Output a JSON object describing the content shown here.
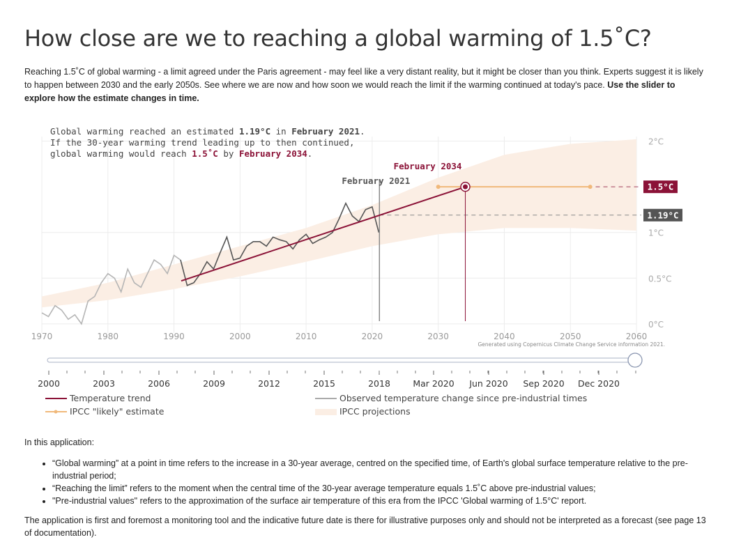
{
  "page": {
    "title": "How close are we to reaching a global warming of 1.5˚C?",
    "intro_text": "Reaching 1.5˚C of global warming - a limit agreed under the Paris agreement - may feel like a very distant reality, but it might be closer than you think. Experts suggest it is likely to happen between 2030 and the early 2050s. See where we are now and how soon we would reach the limit if the warming continued at today's pace. ",
    "intro_bold": "Use the slider to explore how the estimate changes in time."
  },
  "annotation": {
    "line1_a": "Global warming reached an estimated ",
    "line1_value": "1.19°C",
    "line1_b": " in ",
    "line1_date": "February 2021",
    "line1_c": ".",
    "line2": "If the 30-year warming trend leading up to then continued,",
    "line3_a": "global warming would reach ",
    "line3_value": "1.5˚C",
    "line3_b": " by ",
    "line3_date": "February 2034",
    "line3_c": "."
  },
  "chart_data": {
    "type": "line",
    "x_ticks": [
      1970,
      1980,
      1990,
      2000,
      2010,
      2020,
      2030,
      2040,
      2050,
      2060
    ],
    "xlim": [
      1970,
      2060
    ],
    "y_ticks": [
      {
        "value": 0,
        "label": "0°C"
      },
      {
        "value": 0.5,
        "label": "0.5°C"
      },
      {
        "value": 1,
        "label": "1°C"
      },
      {
        "value": 2,
        "label": "2°C"
      }
    ],
    "ylim": [
      -0.1,
      2.05
    ],
    "grid": true,
    "current_marker": {
      "x": 2021.1,
      "label": "February 2021",
      "value": 1.19,
      "badge": "1.19°C"
    },
    "target_marker": {
      "x": 2034.1,
      "label": "February 2034",
      "value": 1.5,
      "badge": "1.5°C"
    },
    "series": [
      {
        "name": "Temperature trend",
        "color": "#8b1237",
        "x": [
          1991.1,
          2034.1
        ],
        "y": [
          0.47,
          1.5
        ]
      },
      {
        "name": "IPCC \"likely\" estimate",
        "color": "#f0b87a",
        "x": [
          2030,
          2053
        ],
        "y": [
          1.5,
          1.5
        ]
      },
      {
        "name": "Observed temperature change since pre-industrial times",
        "color": "#555555",
        "x": [
          1970,
          1971,
          1972,
          1973,
          1974,
          1975,
          1976,
          1977,
          1978,
          1979,
          1980,
          1981,
          1982,
          1983,
          1984,
          1985,
          1986,
          1987,
          1988,
          1989,
          1990,
          1991,
          1992,
          1993,
          1994,
          1995,
          1996,
          1997,
          1998,
          1999,
          2000,
          2001,
          2002,
          2003,
          2004,
          2005,
          2006,
          2007,
          2008,
          2009,
          2010,
          2011,
          2012,
          2013,
          2014,
          2015,
          2016,
          2017,
          2018,
          2019,
          2020,
          2021
        ],
        "y": [
          0.12,
          0.08,
          0.2,
          0.15,
          0.05,
          0.1,
          0.0,
          0.25,
          0.3,
          0.45,
          0.55,
          0.5,
          0.35,
          0.6,
          0.45,
          0.4,
          0.55,
          0.7,
          0.65,
          0.55,
          0.75,
          0.7,
          0.42,
          0.45,
          0.55,
          0.68,
          0.6,
          0.78,
          0.95,
          0.7,
          0.72,
          0.85,
          0.9,
          0.9,
          0.85,
          0.95,
          0.92,
          0.9,
          0.82,
          0.92,
          0.98,
          0.88,
          0.92,
          0.95,
          1.0,
          1.15,
          1.32,
          1.18,
          1.12,
          1.25,
          1.28,
          1.0
        ]
      },
      {
        "name": "IPCC projections",
        "color": "#fbeee4",
        "x": [
          1970,
          1980,
          1990,
          2000,
          2010,
          2020,
          2030,
          2040,
          2050,
          2060
        ],
        "upper": [
          0.3,
          0.45,
          0.65,
          0.85,
          1.05,
          1.3,
          1.6,
          1.85,
          1.97,
          2.02
        ],
        "lower": [
          0.18,
          0.26,
          0.38,
          0.52,
          0.68,
          0.85,
          0.98,
          1.05,
          1.05,
          1.02
        ]
      }
    ],
    "source": "Generated using Copernicus Climate Change Service information 2021."
  },
  "slider": {
    "value": "Feb 2021",
    "tick_labels": [
      "2000",
      "2003",
      "2006",
      "2009",
      "2012",
      "2015",
      "2018",
      "Mar 2020",
      "Jun 2020",
      "Sep 2020",
      "Dec 2020"
    ]
  },
  "legend": {
    "trend": "Temperature trend",
    "likely": "IPCC \"likely\" estimate",
    "observed": "Observed temperature change since pre-industrial times",
    "projections": "IPCC projections"
  },
  "notes": {
    "heading": "In this application:",
    "bullets": [
      "“Global warming” at a point in time refers to the increase in a 30-year average, centred on the specified time, of Earth's global surface temperature relative to the pre-industrial period;",
      "“Reaching the limit” refers to the moment when the central time of the 30-year average temperature equals 1.5˚C above pre-industrial values;",
      "\"Pre-industrial values\" refers to the approximation of the surface air temperature of this era from the IPCC 'Global warming of 1.5°C' report."
    ],
    "footer": "The application is first and foremost a monitoring tool and the indicative future date is there for illustrative purposes only and should not be interpreted as a forecast (see page 13 of documentation)."
  }
}
